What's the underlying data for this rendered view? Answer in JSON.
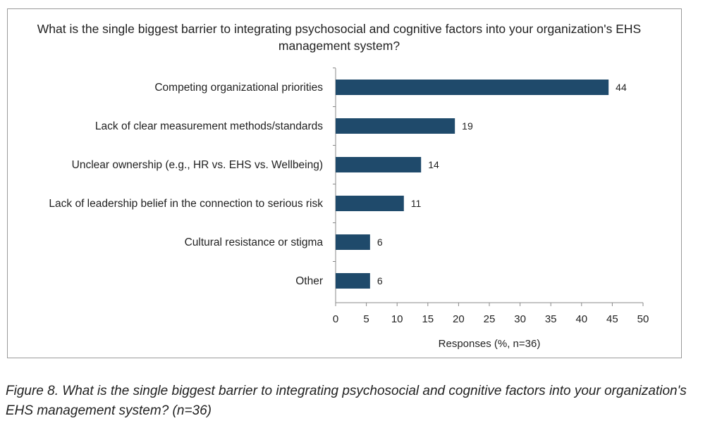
{
  "chart_data": {
    "type": "bar",
    "orientation": "horizontal",
    "title": "What is the single biggest barrier to integrating psychosocial and cognitive factors into your organization's EHS management system?",
    "categories": [
      "Competing organizational priorities",
      "Lack of clear measurement methods/standards",
      "Unclear ownership (e.g., HR vs. EHS vs. Wellbeing)",
      "Lack of leadership belief in the connection to serious risk",
      "Cultural resistance or stigma",
      "Other"
    ],
    "values": [
      44.4,
      19.4,
      13.9,
      11.1,
      5.6,
      5.6
    ],
    "data_labels": [
      "44",
      "19",
      "14",
      "11",
      "6",
      "6"
    ],
    "xlabel": "Responses (%, n=36)",
    "ylabel": "",
    "xlim": [
      0,
      50
    ],
    "xticks": [
      "0",
      "5",
      "10",
      "15",
      "20",
      "25",
      "30",
      "35",
      "40",
      "45",
      "50"
    ],
    "grid": false,
    "legend": "none",
    "bar_color": "#1f4a6b"
  },
  "caption": "Figure 8. What is the single biggest barrier to integrating psychosocial and cognitive factors into your organization's EHS management system? (n=36)"
}
